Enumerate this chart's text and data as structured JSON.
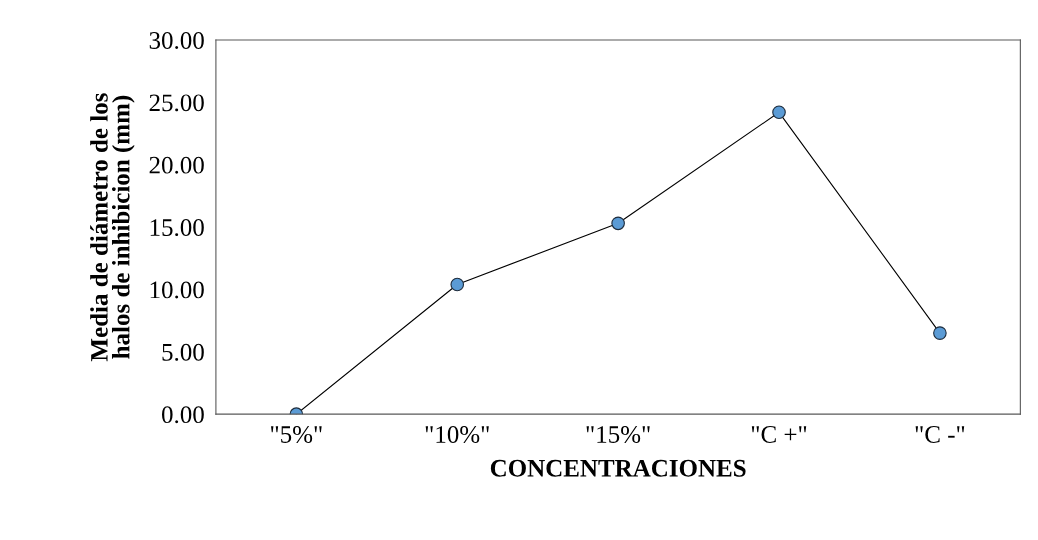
{
  "chart_data": {
    "type": "line",
    "xlabel": "CONCENTRACIONES",
    "ylabel": "Media de diámetro de los\nhalos de inhibicion (mm)",
    "categories": [
      "\"5%\"",
      "\"10%\"",
      "\"15%\"",
      "\"C +\"",
      "\"C -\""
    ],
    "series": [
      {
        "color": "#5b9bd5",
        "values": [
          0.0,
          10.4,
          15.3,
          24.2,
          6.5
        ]
      }
    ],
    "ylim": [
      0,
      30
    ],
    "yticks": [
      {
        "value": 0,
        "label": "0.00"
      },
      {
        "value": 5,
        "label": "5.00"
      },
      {
        "value": 10,
        "label": "10.00"
      },
      {
        "value": 15,
        "label": "15.00"
      },
      {
        "value": 20,
        "label": "20.00"
      },
      {
        "value": 25,
        "label": "25.00"
      },
      {
        "value": 30,
        "label": "30.00"
      }
    ],
    "grid": false,
    "legend": false,
    "marker": "circle",
    "line_style": "solid"
  }
}
